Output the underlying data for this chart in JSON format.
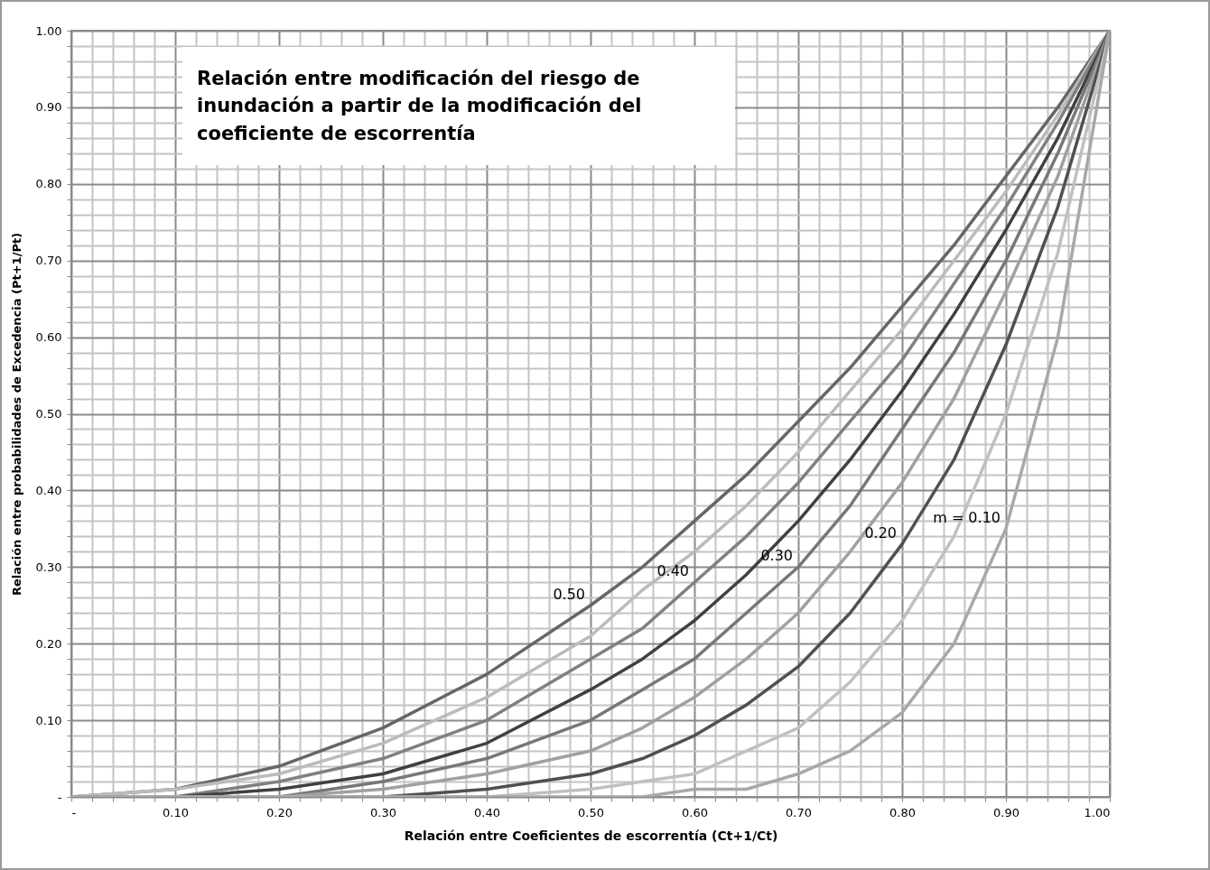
{
  "chart_data": {
    "type": "line",
    "title": "Relación entre modificación del riesgo de inundación a partir de la modificación del coeficiente de escorrentía",
    "xlabel": "Relación entre Coeficientes de escorrentía (Ct+1/Ct)",
    "ylabel": "Relación entre probabilidades de Excedencia (Pt+1/Pt)",
    "x": [
      0,
      0.1,
      0.2,
      0.3,
      0.4,
      0.5,
      0.55,
      0.6,
      0.65,
      0.7,
      0.75,
      0.8,
      0.85,
      0.9,
      0.95,
      1
    ],
    "series": [
      {
        "name": "0.50",
        "color": "#666666",
        "values": [
          0,
          0.01,
          0.04,
          0.09,
          0.16,
          0.25,
          0.3,
          0.36,
          0.42,
          0.49,
          0.56,
          0.64,
          0.72,
          0.81,
          0.9,
          1
        ]
      },
      {
        "color": "#bbbbbb",
        "values": [
          0,
          0.01,
          0.03,
          0.07,
          0.13,
          0.21,
          0.27,
          0.32,
          0.38,
          0.45,
          0.53,
          0.61,
          0.7,
          0.79,
          0.89,
          1
        ]
      },
      {
        "name": "0.40",
        "color": "#808080",
        "values": [
          0,
          0,
          0.02,
          0.05,
          0.1,
          0.18,
          0.22,
          0.28,
          0.34,
          0.41,
          0.49,
          0.57,
          0.67,
          0.77,
          0.88,
          1
        ]
      },
      {
        "color": "#404040",
        "values": [
          0,
          0,
          0.01,
          0.03,
          0.07,
          0.14,
          0.18,
          0.23,
          0.29,
          0.36,
          0.44,
          0.53,
          0.63,
          0.74,
          0.86,
          1
        ]
      },
      {
        "name": "0.30",
        "color": "#777777",
        "values": [
          0,
          0,
          0,
          0.02,
          0.05,
          0.1,
          0.14,
          0.18,
          0.24,
          0.3,
          0.38,
          0.48,
          0.58,
          0.7,
          0.84,
          1
        ]
      },
      {
        "color": "#a0a0a0",
        "values": [
          0,
          0,
          0,
          0.01,
          0.03,
          0.06,
          0.09,
          0.13,
          0.18,
          0.24,
          0.32,
          0.41,
          0.52,
          0.66,
          0.81,
          1
        ]
      },
      {
        "name": "0.20",
        "color": "#505050",
        "values": [
          0,
          0,
          0,
          0,
          0.01,
          0.03,
          0.05,
          0.08,
          0.12,
          0.17,
          0.24,
          0.33,
          0.44,
          0.59,
          0.77,
          1
        ]
      },
      {
        "color": "#c0c0c0",
        "values": [
          0,
          0,
          0,
          0,
          0,
          0.01,
          0.02,
          0.03,
          0.06,
          0.09,
          0.15,
          0.23,
          0.34,
          0.5,
          0.71,
          1
        ]
      },
      {
        "name": "m = 0.10",
        "color": "#a8a8a8",
        "values": [
          0,
          0,
          0,
          0,
          0,
          0,
          0,
          0.01,
          0.01,
          0.03,
          0.06,
          0.11,
          0.2,
          0.35,
          0.6,
          1
        ]
      }
    ],
    "xlim": [
      0,
      1
    ],
    "ylim": [
      0,
      1
    ],
    "xticks": [
      {
        "value": 0,
        "label": "-"
      },
      {
        "value": 0.02,
        "label": null
      },
      {
        "value": 0.04,
        "label": null
      },
      {
        "value": 0.06,
        "label": null
      },
      {
        "value": 0.08,
        "label": null
      },
      {
        "value": 0.1,
        "label": "0.10"
      },
      {
        "value": 0.12,
        "label": null
      },
      {
        "value": 0.14,
        "label": null
      },
      {
        "value": 0.16,
        "label": null
      },
      {
        "value": 0.18,
        "label": null
      },
      {
        "value": 0.2,
        "label": "0.20"
      },
      {
        "value": 0.22,
        "label": null
      },
      {
        "value": 0.24,
        "label": null
      },
      {
        "value": 0.26,
        "label": null
      },
      {
        "value": 0.28,
        "label": null
      },
      {
        "value": 0.3,
        "label": "0.30"
      },
      {
        "value": 0.32,
        "label": null
      },
      {
        "value": 0.34,
        "label": null
      },
      {
        "value": 0.36,
        "label": null
      },
      {
        "value": 0.38,
        "label": null
      },
      {
        "value": 0.4,
        "label": "0.40"
      },
      {
        "value": 0.42,
        "label": null
      },
      {
        "value": 0.44,
        "label": null
      },
      {
        "value": 0.46,
        "label": null
      },
      {
        "value": 0.48,
        "label": null
      },
      {
        "value": 0.5,
        "label": "0.50"
      },
      {
        "value": 0.52,
        "label": null
      },
      {
        "value": 0.54,
        "label": null
      },
      {
        "value": 0.56,
        "label": null
      },
      {
        "value": 0.58,
        "label": null
      },
      {
        "value": 0.6,
        "label": "0.60"
      },
      {
        "value": 0.62,
        "label": null
      },
      {
        "value": 0.64,
        "label": null
      },
      {
        "value": 0.66,
        "label": null
      },
      {
        "value": 0.68,
        "label": null
      },
      {
        "value": 0.7,
        "label": "0.70"
      },
      {
        "value": 0.72,
        "label": null
      },
      {
        "value": 0.74,
        "label": null
      },
      {
        "value": 0.76,
        "label": null
      },
      {
        "value": 0.78,
        "label": null
      },
      {
        "value": 0.8,
        "label": "0.80"
      },
      {
        "value": 0.82,
        "label": null
      },
      {
        "value": 0.84,
        "label": null
      },
      {
        "value": 0.86,
        "label": null
      },
      {
        "value": 0.88,
        "label": null
      },
      {
        "value": 0.9,
        "label": "0.90"
      },
      {
        "value": 0.92,
        "label": null
      },
      {
        "value": 0.94,
        "label": null
      },
      {
        "value": 0.96,
        "label": null
      },
      {
        "value": 0.98,
        "label": null
      },
      {
        "value": 1,
        "label": "1.00"
      }
    ],
    "yticks": [
      {
        "value": 0,
        "label": "-"
      },
      {
        "value": 0.02,
        "label": null
      },
      {
        "value": 0.04,
        "label": null
      },
      {
        "value": 0.06,
        "label": null
      },
      {
        "value": 0.08,
        "label": null
      },
      {
        "value": 0.1,
        "label": "0.10"
      },
      {
        "value": 0.12,
        "label": null
      },
      {
        "value": 0.14,
        "label": null
      },
      {
        "value": 0.16,
        "label": null
      },
      {
        "value": 0.18,
        "label": null
      },
      {
        "value": 0.2,
        "label": "0.20"
      },
      {
        "value": 0.22,
        "label": null
      },
      {
        "value": 0.24,
        "label": null
      },
      {
        "value": 0.26,
        "label": null
      },
      {
        "value": 0.28,
        "label": null
      },
      {
        "value": 0.3,
        "label": "0.30"
      },
      {
        "value": 0.32,
        "label": null
      },
      {
        "value": 0.34,
        "label": null
      },
      {
        "value": 0.36,
        "label": null
      },
      {
        "value": 0.38,
        "label": null
      },
      {
        "value": 0.4,
        "label": "0.40"
      },
      {
        "value": 0.42,
        "label": null
      },
      {
        "value": 0.44,
        "label": null
      },
      {
        "value": 0.46,
        "label": null
      },
      {
        "value": 0.48,
        "label": null
      },
      {
        "value": 0.5,
        "label": "0.50"
      },
      {
        "value": 0.52,
        "label": null
      },
      {
        "value": 0.54,
        "label": null
      },
      {
        "value": 0.56,
        "label": null
      },
      {
        "value": 0.58,
        "label": null
      },
      {
        "value": 0.6,
        "label": "0.60"
      },
      {
        "value": 0.62,
        "label": null
      },
      {
        "value": 0.64,
        "label": null
      },
      {
        "value": 0.66,
        "label": null
      },
      {
        "value": 0.68,
        "label": null
      },
      {
        "value": 0.7,
        "label": "0.70"
      },
      {
        "value": 0.72,
        "label": null
      },
      {
        "value": 0.74,
        "label": null
      },
      {
        "value": 0.76,
        "label": null
      },
      {
        "value": 0.78,
        "label": null
      },
      {
        "value": 0.8,
        "label": "0.80"
      },
      {
        "value": 0.82,
        "label": null
      },
      {
        "value": 0.84,
        "label": null
      },
      {
        "value": 0.86,
        "label": null
      },
      {
        "value": 0.88,
        "label": null
      },
      {
        "value": 0.9,
        "label": "0.90"
      },
      {
        "value": 0.92,
        "label": null
      },
      {
        "value": 0.94,
        "label": null
      },
      {
        "value": 0.96,
        "label": null
      },
      {
        "value": 0.98,
        "label": null
      },
      {
        "value": 1,
        "label": "1.00"
      }
    ],
    "grid": true
  }
}
